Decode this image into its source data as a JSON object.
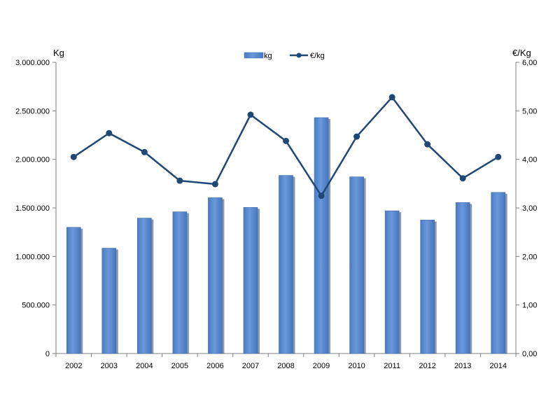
{
  "chart_data": {
    "type": "bar+line",
    "categories": [
      "2002",
      "2003",
      "2004",
      "2005",
      "2006",
      "2007",
      "2008",
      "2009",
      "2010",
      "2011",
      "2012",
      "2013",
      "2014"
    ],
    "series": [
      {
        "name": "kg",
        "type": "bar",
        "axis": "left",
        "values": [
          1300000,
          1085000,
          1395000,
          1460000,
          1605000,
          1505000,
          1835000,
          2430000,
          1820000,
          1470000,
          1375000,
          1555000,
          1660000
        ]
      },
      {
        "name": "€/kg",
        "type": "line",
        "axis": "right",
        "values": [
          4.05,
          4.54,
          4.15,
          3.56,
          3.49,
          4.92,
          4.38,
          3.25,
          4.47,
          5.28,
          4.31,
          3.61,
          4.05
        ]
      }
    ],
    "ylabel_left": "Kg",
    "ylabel_right": "€/Kg",
    "ylim_left": [
      0,
      3000000
    ],
    "ylim_right": [
      0,
      6
    ],
    "yticks_left": [
      "0",
      "500.000",
      "1.000.000",
      "1.500.000",
      "2.000.000",
      "2.500.000",
      "3.000.000"
    ],
    "yticks_right": [
      "0,00",
      "1,00",
      "2,00",
      "3,00",
      "4,00",
      "5,00",
      "6,00"
    ],
    "legend_position": "top-center",
    "grid": false,
    "colors": {
      "bar": "#5b8bd1",
      "bar_edge": "#3f6aab",
      "bar_shadow": "#27466f",
      "line": "#1f4877",
      "axis": "#808080"
    }
  }
}
